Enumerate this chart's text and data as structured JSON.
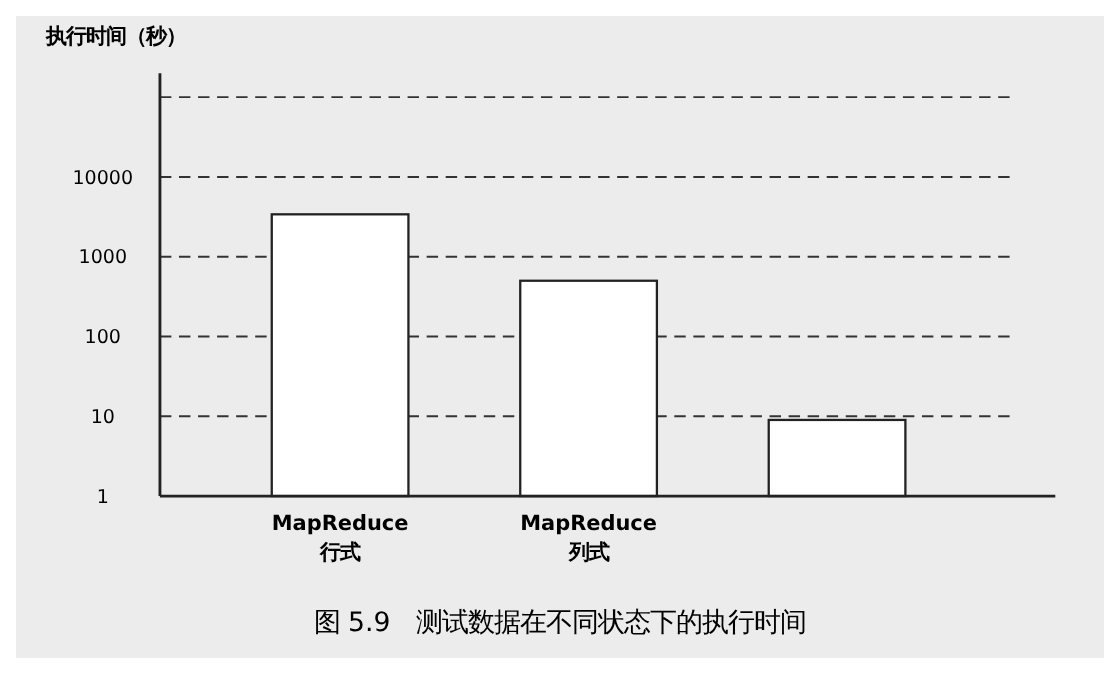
{
  "chart_data": {
    "type": "bar",
    "title": "图 5.9　测试数据在不同状态下的执行时间",
    "ylabel": "执行时间（秒）",
    "categories": [
      "MapReduce\n行式",
      "MapReduce\n列式",
      null
    ],
    "values": [
      3400,
      500,
      9
    ],
    "color": "#ffffff",
    "log": "y",
    "ylim": [
      1,
      200000
    ],
    "yticks": [
      1,
      10,
      100,
      1000,
      10000,
      {
        "value": 100000,
        "label": null
      }
    ],
    "grid": "y"
  }
}
